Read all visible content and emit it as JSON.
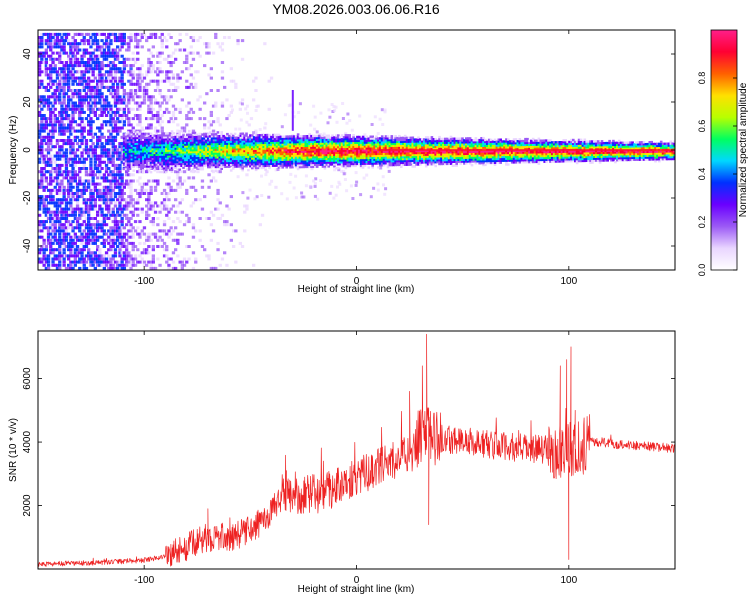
{
  "title": "YM08.2026.003.06.06.R16",
  "chart_data": [
    {
      "type": "heatmap",
      "xlabel": "Height of straight line (km)",
      "ylabel": "Frequency (Hz)",
      "xlim": [
        -150,
        150
      ],
      "ylim": [
        -50,
        50
      ],
      "xticks": [
        -100,
        0,
        100
      ],
      "yticks": [
        -40,
        -20,
        0,
        20,
        40
      ],
      "colorbar": {
        "label": "Normalized spectral amplitude",
        "range": [
          0,
          1
        ],
        "ticks": [
          "0.0",
          "0.2",
          "0.4",
          "0.6",
          "0.8"
        ],
        "colormap": [
          "#ffffff",
          "#e9d5ff",
          "#9b59f5",
          "#6a00ff",
          "#0030ff",
          "#00d8ff",
          "#00ff60",
          "#b8ff00",
          "#ffe000",
          "#ff6000",
          "#ff0033",
          "#ff1f8a"
        ]
      },
      "features": {
        "noise_region_x": [
          -150,
          -55
        ],
        "dense_noise_x": [
          -150,
          -110
        ],
        "band_center_hz": 0,
        "band_start_x": -110,
        "band_half_width_hz_at_start": 7,
        "band_half_width_hz_at_end": 2
      }
    },
    {
      "type": "line",
      "xlabel": "Height of straight line (km)",
      "ylabel": "SNR (10 * v/v)",
      "xlim": [
        -150,
        150
      ],
      "ylim": [
        0,
        7500
      ],
      "xticks": [
        -100,
        0,
        100
      ],
      "yticks": [
        2000,
        4000,
        6000
      ],
      "color": "#ee2222",
      "envelope": {
        "x": [
          -150,
          -120,
          -100,
          -90,
          -80,
          -70,
          -60,
          -50,
          -40,
          -35,
          -30,
          -20,
          -10,
          0,
          10,
          20,
          25,
          30,
          33,
          35,
          40,
          50,
          60,
          70,
          80,
          90,
          95,
          100,
          105,
          110,
          115,
          120,
          130,
          140,
          150
        ],
        "y": [
          150,
          200,
          280,
          400,
          700,
          1000,
          1000,
          1200,
          1800,
          2300,
          2300,
          2400,
          2600,
          2900,
          3200,
          3500,
          3700,
          4200,
          4200,
          4200,
          4100,
          4050,
          3950,
          3850,
          3800,
          3750,
          3750,
          3800,
          3800,
          4000,
          4000,
          3950,
          3900,
          3850,
          3800
        ]
      },
      "spikes": [
        {
          "x": -70,
          "y": 1900
        },
        {
          "x": -33,
          "y": 3100
        },
        {
          "x": -20,
          "y": 2600
        },
        {
          "x": 25,
          "y": 5600
        },
        {
          "x": 31,
          "y": 6400
        },
        {
          "x": 33,
          "y": 7400
        },
        {
          "x": 34,
          "y": 1400
        },
        {
          "x": 96,
          "y": 6400
        },
        {
          "x": 99,
          "y": 6600
        },
        {
          "x": 100,
          "y": 300
        },
        {
          "x": 101,
          "y": 7000
        },
        {
          "x": 103,
          "y": 5000
        }
      ]
    }
  ]
}
